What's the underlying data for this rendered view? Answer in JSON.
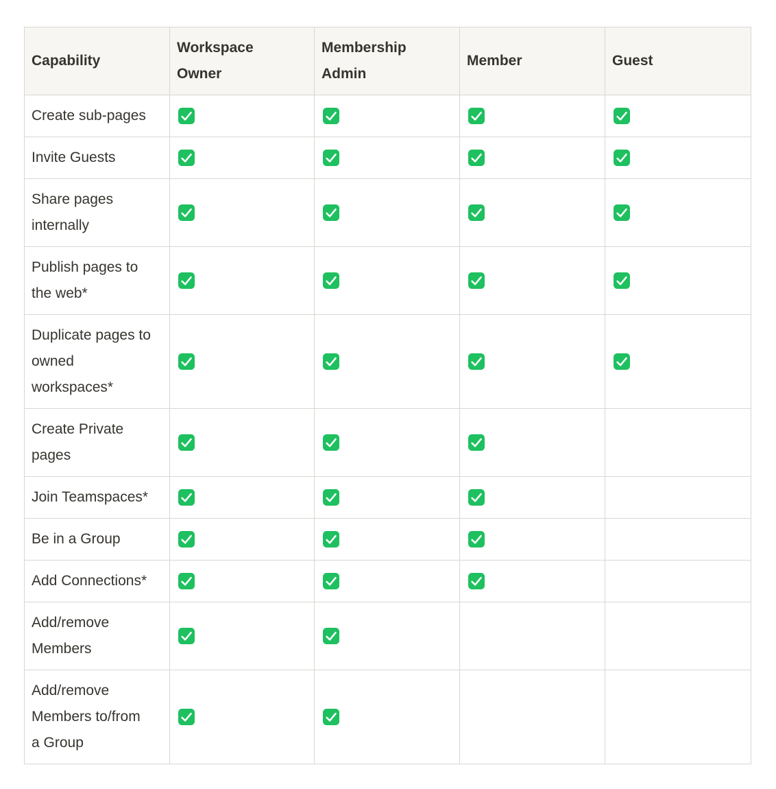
{
  "page": {
    "background": "#ffffff"
  },
  "colors": {
    "header_bg": "#f7f6f2",
    "border": "#d9d7d3",
    "text": "#36342f",
    "check_green": "#1ec05f",
    "check_mark": "#ffffff",
    "cell_bg": "#ffffff"
  },
  "icons": {
    "check": "green-check-icon"
  },
  "table": {
    "columns": [
      {
        "key": "capability",
        "label": "Capability"
      },
      {
        "key": "workspace-owner",
        "label": "Workspace\nOwner"
      },
      {
        "key": "membership-admin",
        "label": "Membership\nAdmin"
      },
      {
        "key": "member",
        "label": "Member"
      },
      {
        "key": "guest",
        "label": "Guest"
      }
    ],
    "rows": [
      {
        "capability": "Create sub-pages",
        "checks": [
          true,
          true,
          true,
          true
        ]
      },
      {
        "capability": "Invite Guests",
        "checks": [
          true,
          true,
          true,
          true
        ]
      },
      {
        "capability": "Share pages\ninternally",
        "checks": [
          true,
          true,
          true,
          true
        ]
      },
      {
        "capability": "Publish pages to\nthe web*",
        "checks": [
          true,
          true,
          true,
          true
        ]
      },
      {
        "capability": "Duplicate pages to\nowned\nworkspaces*",
        "checks": [
          true,
          true,
          true,
          true
        ]
      },
      {
        "capability": "Create Private\npages",
        "checks": [
          true,
          true,
          true,
          false
        ]
      },
      {
        "capability": "Join Teamspaces*",
        "checks": [
          true,
          true,
          true,
          false
        ]
      },
      {
        "capability": "Be in a Group",
        "checks": [
          true,
          true,
          true,
          false
        ]
      },
      {
        "capability": "Add Connections*",
        "checks": [
          true,
          true,
          true,
          false
        ]
      },
      {
        "capability": "Add/remove\nMembers",
        "checks": [
          true,
          true,
          false,
          false
        ]
      },
      {
        "capability": "Add/remove\nMembers to/from\na Group",
        "checks": [
          true,
          true,
          false,
          false
        ]
      }
    ]
  }
}
